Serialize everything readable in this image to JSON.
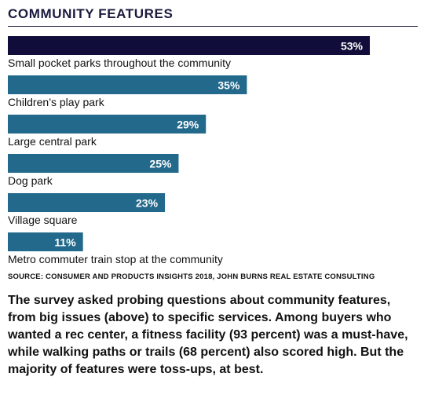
{
  "header": {
    "title": "COMMUNITY FEATURES"
  },
  "colors": {
    "highlight_bar": "#110d3a",
    "bar": "#22698b",
    "value_text": "#ffffff",
    "title": "#1a1a3e"
  },
  "chart_data": {
    "type": "bar",
    "orientation": "horizontal",
    "title": "COMMUNITY FEATURES",
    "categories": [
      "Small pocket parks throughout the community",
      "Children’s play park",
      "Large central park",
      "Dog park",
      "Village square",
      "Metro commuter train stop at the community"
    ],
    "values": [
      53,
      35,
      29,
      25,
      23,
      11
    ],
    "value_labels": [
      "53%",
      "35%",
      "29%",
      "25%",
      "23%",
      "11%"
    ],
    "unit": "%",
    "xlabel": "",
    "ylabel": "",
    "xlim": [
      0,
      53
    ],
    "grid": false,
    "legend": "none",
    "highlighted_index": 0
  },
  "footer": {
    "source": "SOURCE: CONSUMER AND PRODUCTS INSIGHTS 2018, JOHN BURNS REAL ESTATE CONSULTING",
    "caption": "The survey asked probing questions about community features, from big issues (above) to specific services. Among buyers who wanted a rec center, a fitness facility (93 percent) was a must-have, while walking paths or trails (68 percent) also scored high. But the majority of features were toss-ups, at best."
  }
}
